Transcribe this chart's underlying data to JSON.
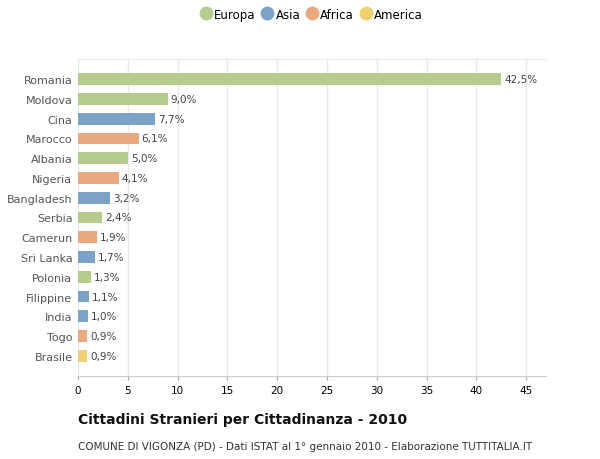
{
  "categories": [
    "Romania",
    "Moldova",
    "Cina",
    "Marocco",
    "Albania",
    "Nigeria",
    "Bangladesh",
    "Serbia",
    "Camerun",
    "Sri Lanka",
    "Polonia",
    "Filippine",
    "India",
    "Togo",
    "Brasile"
  ],
  "values": [
    42.5,
    9.0,
    7.7,
    6.1,
    5.0,
    4.1,
    3.2,
    2.4,
    1.9,
    1.7,
    1.3,
    1.1,
    1.0,
    0.9,
    0.9
  ],
  "labels": [
    "42,5%",
    "9,0%",
    "7,7%",
    "6,1%",
    "5,0%",
    "4,1%",
    "3,2%",
    "2,4%",
    "1,9%",
    "1,7%",
    "1,3%",
    "1,1%",
    "1,0%",
    "0,9%",
    "0,9%"
  ],
  "continents": [
    "Europa",
    "Europa",
    "Asia",
    "Africa",
    "Europa",
    "Africa",
    "Asia",
    "Europa",
    "Africa",
    "Asia",
    "Europa",
    "Asia",
    "Asia",
    "Africa",
    "America"
  ],
  "colors": {
    "Europa": "#b5cc8e",
    "Asia": "#7ba3c8",
    "Africa": "#e8a97e",
    "America": "#f0d070"
  },
  "legend_order": [
    "Europa",
    "Asia",
    "Africa",
    "America"
  ],
  "title": "Cittadini Stranieri per Cittadinanza - 2010",
  "subtitle": "COMUNE DI VIGONZA (PD) - Dati ISTAT al 1° gennaio 2010 - Elaborazione TUTTITALIA.IT",
  "xlim": [
    0,
    47
  ],
  "xticks": [
    0,
    5,
    10,
    15,
    20,
    25,
    30,
    35,
    40,
    45
  ],
  "background_color": "#ffffff",
  "plot_background": "#ffffff",
  "grid_color": "#e8e8e8",
  "title_fontsize": 10,
  "subtitle_fontsize": 7.5,
  "bar_height": 0.6
}
